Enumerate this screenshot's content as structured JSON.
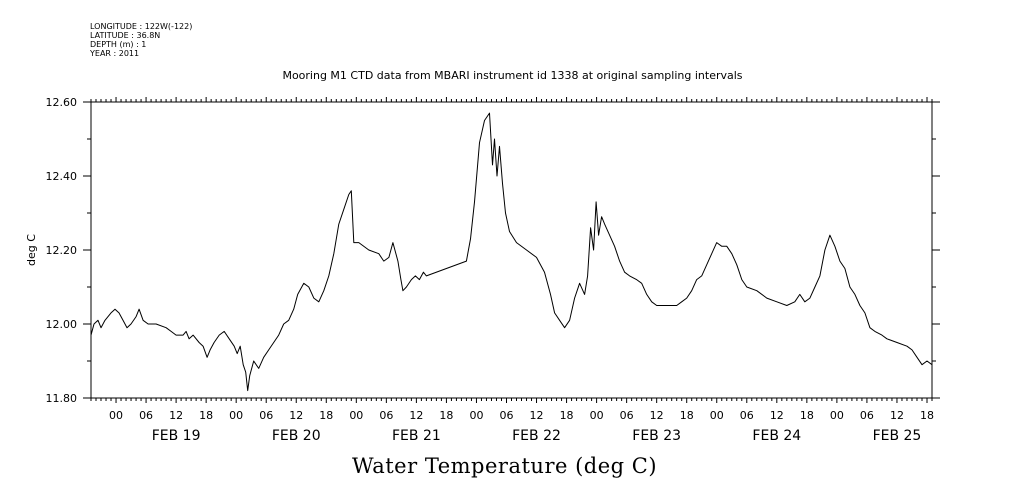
{
  "meta": {
    "longitude": "LONGITUDE : 122W(-122)",
    "latitude": "LATITUDE : 36.8N",
    "depth": "DEPTH (m) : 1",
    "year": "YEAR : 2011"
  },
  "chart_data": {
    "type": "line",
    "title": "Mooring M1 CTD data from MBARI instrument id 1338 at original sampling intervals",
    "xlabel": "Water Temperature (deg C)",
    "ylabel": "deg C",
    "x_unit": "hours since FEB 19 00:00",
    "xlim": [
      -5,
      163
    ],
    "ylim": [
      11.8,
      12.6
    ],
    "y_ticks": [
      "11.80",
      "12.00",
      "12.20",
      "12.40",
      "12.60"
    ],
    "hour_labels": [
      "00",
      "06",
      "12",
      "18"
    ],
    "day_labels": [
      "FEB 19",
      "FEB 20",
      "FEB 21",
      "FEB 22",
      "FEB 23",
      "FEB 24",
      "FEB 25"
    ],
    "grid": false,
    "series": [
      {
        "color": "#000000",
        "points": [
          [
            -5,
            11.97
          ],
          [
            -4.4,
            12.0
          ],
          [
            -3.6,
            12.01
          ],
          [
            -3,
            11.99
          ],
          [
            -2.2,
            12.01
          ],
          [
            -1,
            12.03
          ],
          [
            -0.2,
            12.04
          ],
          [
            0.6,
            12.03
          ],
          [
            1.4,
            12.01
          ],
          [
            2.2,
            11.99
          ],
          [
            3,
            12.0
          ],
          [
            4,
            12.02
          ],
          [
            4.6,
            12.04
          ],
          [
            5.4,
            12.01
          ],
          [
            6.4,
            12.0
          ],
          [
            8,
            12.0
          ],
          [
            10,
            11.99
          ],
          [
            11,
            11.98
          ],
          [
            12,
            11.97
          ],
          [
            13.4,
            11.97
          ],
          [
            14,
            11.98
          ],
          [
            14.6,
            11.96
          ],
          [
            15.4,
            11.97
          ],
          [
            16.6,
            11.95
          ],
          [
            17.4,
            11.94
          ],
          [
            18.2,
            11.91
          ],
          [
            18.8,
            11.93
          ],
          [
            19.6,
            11.95
          ],
          [
            20.6,
            11.97
          ],
          [
            21.6,
            11.98
          ],
          [
            22.6,
            11.96
          ],
          [
            23.6,
            11.94
          ],
          [
            24.2,
            11.92
          ],
          [
            24.8,
            11.94
          ],
          [
            25.4,
            11.89
          ],
          [
            25.9,
            11.87
          ],
          [
            26.3,
            11.82
          ],
          [
            26.7,
            11.86
          ],
          [
            27.5,
            11.9
          ],
          [
            28.5,
            11.88
          ],
          [
            29.5,
            11.91
          ],
          [
            30.5,
            11.93
          ],
          [
            31.5,
            11.95
          ],
          [
            32.5,
            11.97
          ],
          [
            33.5,
            12.0
          ],
          [
            34.5,
            12.01
          ],
          [
            35.5,
            12.04
          ],
          [
            36.3,
            12.08
          ],
          [
            37.5,
            12.11
          ],
          [
            38.5,
            12.1
          ],
          [
            39.5,
            12.07
          ],
          [
            40.5,
            12.06
          ],
          [
            41.5,
            12.09
          ],
          [
            42.5,
            12.13
          ],
          [
            43.5,
            12.19
          ],
          [
            44.5,
            12.27
          ],
          [
            45.5,
            12.31
          ],
          [
            46.5,
            12.35
          ],
          [
            47,
            12.36
          ],
          [
            47.5,
            12.22
          ],
          [
            48.5,
            12.22
          ],
          [
            50.5,
            12.2
          ],
          [
            52.5,
            12.19
          ],
          [
            53.5,
            12.17
          ],
          [
            54.5,
            12.18
          ],
          [
            55.3,
            12.22
          ],
          [
            56.3,
            12.17
          ],
          [
            56.9,
            12.12
          ],
          [
            57.3,
            12.09
          ],
          [
            58,
            12.1
          ],
          [
            59,
            12.12
          ],
          [
            59.8,
            12.13
          ],
          [
            60.6,
            12.12
          ],
          [
            61.4,
            12.14
          ],
          [
            62,
            12.13
          ],
          [
            70,
            12.17
          ],
          [
            70.8,
            12.23
          ],
          [
            71.6,
            12.33
          ],
          [
            72.6,
            12.49
          ],
          [
            73.6,
            12.55
          ],
          [
            74.6,
            12.57
          ],
          [
            75.2,
            12.43
          ],
          [
            75.6,
            12.5
          ],
          [
            76.1,
            12.4
          ],
          [
            76.6,
            12.48
          ],
          [
            77.2,
            12.38
          ],
          [
            77.8,
            12.3
          ],
          [
            78.6,
            12.25
          ],
          [
            80,
            12.22
          ],
          [
            82,
            12.2
          ],
          [
            84,
            12.18
          ],
          [
            85.6,
            12.14
          ],
          [
            86.8,
            12.08
          ],
          [
            87.6,
            12.03
          ],
          [
            88.6,
            12.01
          ],
          [
            89.6,
            11.99
          ],
          [
            90.6,
            12.01
          ],
          [
            91.6,
            12.07
          ],
          [
            92.6,
            12.11
          ],
          [
            93.6,
            12.08
          ],
          [
            94.2,
            12.13
          ],
          [
            94.8,
            12.26
          ],
          [
            95.4,
            12.2
          ],
          [
            95.9,
            12.33
          ],
          [
            96.4,
            12.24
          ],
          [
            97,
            12.29
          ],
          [
            97.6,
            12.27
          ],
          [
            98.6,
            12.24
          ],
          [
            99.6,
            12.21
          ],
          [
            100.6,
            12.17
          ],
          [
            101.6,
            12.14
          ],
          [
            102.6,
            12.13
          ],
          [
            104,
            12.12
          ],
          [
            105,
            12.11
          ],
          [
            106,
            12.08
          ],
          [
            107,
            12.06
          ],
          [
            108,
            12.05
          ],
          [
            110,
            12.05
          ],
          [
            112,
            12.05
          ],
          [
            113,
            12.06
          ],
          [
            114,
            12.07
          ],
          [
            115,
            12.09
          ],
          [
            116,
            12.12
          ],
          [
            117,
            12.13
          ],
          [
            118,
            12.16
          ],
          [
            119,
            12.19
          ],
          [
            120,
            12.22
          ],
          [
            121,
            12.21
          ],
          [
            122,
            12.21
          ],
          [
            123,
            12.19
          ],
          [
            124,
            12.16
          ],
          [
            125,
            12.12
          ],
          [
            126,
            12.1
          ],
          [
            128,
            12.09
          ],
          [
            130,
            12.07
          ],
          [
            132,
            12.06
          ],
          [
            134,
            12.05
          ],
          [
            135.6,
            12.06
          ],
          [
            136.6,
            12.08
          ],
          [
            137.6,
            12.06
          ],
          [
            138.6,
            12.07
          ],
          [
            139.6,
            12.1
          ],
          [
            140.6,
            12.13
          ],
          [
            141.6,
            12.2
          ],
          [
            142.6,
            12.24
          ],
          [
            143.6,
            12.21
          ],
          [
            144.6,
            12.17
          ],
          [
            145.6,
            12.15
          ],
          [
            146.6,
            12.1
          ],
          [
            147.6,
            12.08
          ],
          [
            148.6,
            12.05
          ],
          [
            149.6,
            12.03
          ],
          [
            150.6,
            11.99
          ],
          [
            151.6,
            11.98
          ],
          [
            153,
            11.97
          ],
          [
            154,
            11.96
          ],
          [
            156,
            11.95
          ],
          [
            158,
            11.94
          ],
          [
            159,
            11.93
          ],
          [
            160,
            11.91
          ],
          [
            161,
            11.89
          ],
          [
            162,
            11.9
          ],
          [
            163,
            11.89
          ]
        ]
      }
    ]
  }
}
